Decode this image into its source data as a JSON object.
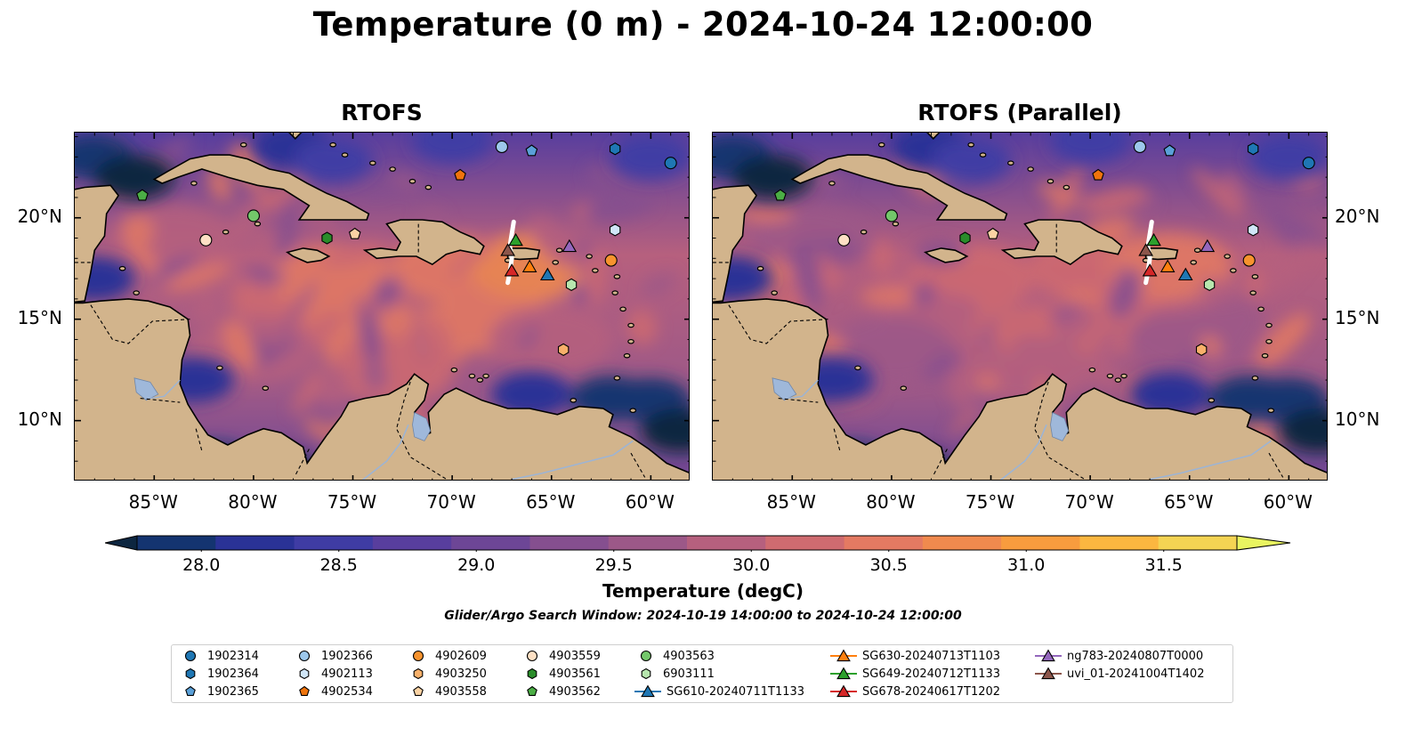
{
  "title": "Temperature (0 m) - 2024-10-24 12:00:00",
  "panels": [
    {
      "title": "RTOFS"
    },
    {
      "title": "RTOFS (Parallel)"
    }
  ],
  "axes": {
    "x_ticks": [
      "85°W",
      "80°W",
      "75°W",
      "70°W",
      "65°W",
      "60°W"
    ],
    "y_ticks": [
      "20°N",
      "15°N",
      "10°N"
    ],
    "extent": {
      "lon_min": -89.0,
      "lon_max": -58.0,
      "lat_min": 7.0,
      "lat_max": 24.2
    }
  },
  "colorbar": {
    "label": "Temperature (degC)",
    "ticks": [
      "28.0",
      "28.5",
      "29.0",
      "29.5",
      "30.0",
      "30.5",
      "31.0",
      "31.5"
    ],
    "vmin": 28.0,
    "vmax": 31.5,
    "colors": [
      "#0d2640",
      "#143470",
      "#2a3296",
      "#3f3ca4",
      "#583e9e",
      "#6d4696",
      "#854f8f",
      "#9c5888",
      "#b6607e",
      "#cf6b70",
      "#e47a62",
      "#f08a4e",
      "#f89c3e",
      "#fbb740",
      "#f4d453",
      "#e9f460"
    ]
  },
  "search_window": "Glider/Argo Search Window: 2024-10-19 14:00:00 to 2024-10-24 12:00:00",
  "observations": [
    {
      "id": "1902314",
      "marker": "circle",
      "color": "#1f77b4",
      "lon": -59.0,
      "lat": 22.7
    },
    {
      "id": "1902364",
      "marker": "hexagon",
      "color": "#1f77b4",
      "lon": -61.8,
      "lat": 23.4
    },
    {
      "id": "1902365",
      "marker": "pentagon",
      "color": "#5aa0d8",
      "lon": -66.0,
      "lat": 23.3
    },
    {
      "id": "1902366",
      "marker": "circle",
      "color": "#9dc8ec",
      "lon": -67.5,
      "lat": 23.5
    },
    {
      "id": "4902113",
      "marker": "hexagon",
      "color": "#d0e6f8",
      "lon": -61.8,
      "lat": 19.4
    },
    {
      "id": "4902534",
      "marker": "pentagon",
      "color": "#f0740c",
      "lon": -69.6,
      "lat": 22.1
    },
    {
      "id": "4902609",
      "marker": "circle",
      "color": "#f7932e",
      "lon": -62.0,
      "lat": 17.9
    },
    {
      "id": "4903250",
      "marker": "hexagon",
      "color": "#f8b06a",
      "lon": -64.4,
      "lat": 13.5
    },
    {
      "id": "4903558",
      "marker": "pentagon",
      "color": "#fbd3a4",
      "lon": -74.9,
      "lat": 19.2
    },
    {
      "id": "4903559",
      "marker": "circle",
      "color": "#fde0c4",
      "lon": -82.4,
      "lat": 18.9
    },
    {
      "id": "4903561",
      "marker": "hexagon",
      "color": "#2a8c2a",
      "lon": -76.3,
      "lat": 19.0
    },
    {
      "id": "4903562",
      "marker": "pentagon",
      "color": "#4bae45",
      "lon": -85.6,
      "lat": 21.1
    },
    {
      "id": "4903563",
      "marker": "circle",
      "color": "#73c76a",
      "lon": -80.0,
      "lat": 20.1
    },
    {
      "id": "6903111",
      "marker": "hexagon",
      "color": "#b7e6ae",
      "lon": -64.0,
      "lat": 16.7
    }
  ],
  "gliders": [
    {
      "id": "SG610-20240711T1133",
      "color": "#1f77b4",
      "lon": -65.2,
      "lat": 17.2
    },
    {
      "id": "SG630-20240713T1103",
      "color": "#ff7f0e",
      "lon": -66.1,
      "lat": 17.6
    },
    {
      "id": "SG649-20240712T1133",
      "color": "#2ca02c",
      "lon": -66.8,
      "lat": 18.9
    },
    {
      "id": "SG678-20240617T1202",
      "color": "#d62728",
      "lon": -67.0,
      "lat": 17.4
    },
    {
      "id": "ng783-20240807T0000",
      "color": "#9467bd",
      "lon": -64.1,
      "lat": 18.6
    },
    {
      "id": "uvi_01-20241004T1402",
      "color": "#8c564b",
      "lon": -67.2,
      "lat": 18.4
    }
  ],
  "legend_columns": [
    [
      "1902314",
      "1902364",
      "1902365"
    ],
    [
      "1902366",
      "4902113",
      "4902534"
    ],
    [
      "4902609",
      "4903250",
      "4903558"
    ],
    [
      "4903559",
      "4903561",
      "4903562"
    ],
    [
      "4903563",
      "6903111",
      "SG610-20240711T1133"
    ],
    [
      "SG630-20240713T1103",
      "SG649-20240712T1133",
      "SG678-20240617T1202"
    ],
    [
      "ng783-20240807T0000",
      "uvi_01-20241004T1402"
    ]
  ]
}
